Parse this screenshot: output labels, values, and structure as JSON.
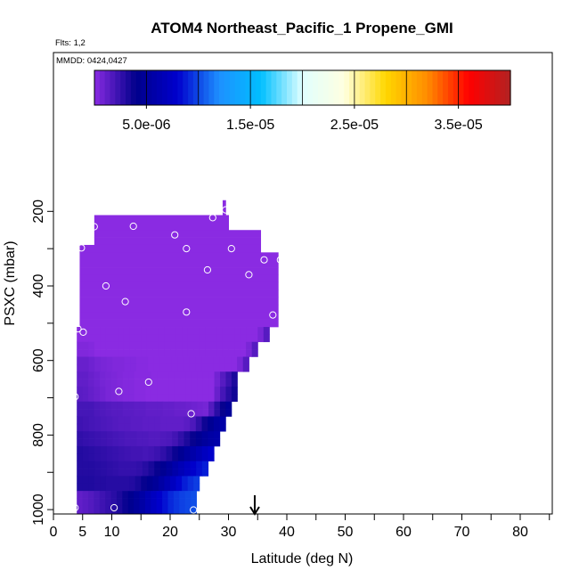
{
  "header": {
    "flights_text": "Flts: 1,2",
    "mmdd_text": "MMDD: 0424,0427"
  },
  "chart_data": {
    "type": "heatmap",
    "title": "ATOM4 Northeast_Pacific_1 Propene_GMI",
    "xlabel": "Latitude (deg N)",
    "ylabel": "PSXC (mbar)",
    "xlim": [
      0,
      85
    ],
    "ylim": [
      1010,
      0
    ],
    "x_ticks": [
      0,
      5,
      10,
      20,
      30,
      40,
      50,
      60,
      70,
      80
    ],
    "y_ticks": [
      200,
      400,
      600,
      800,
      1000
    ],
    "colorbar": {
      "range": [
        0,
        4e-05
      ],
      "tick_values": [
        5e-06,
        1.5e-05,
        2.5e-05,
        3.5e-05
      ],
      "tick_labels": [
        "5.0e-06",
        "1.5e-05",
        "2.5e-05",
        "3.5e-05"
      ],
      "colors": [
        "#8a2be2",
        "#00008b",
        "#0000cd",
        "#1e90ff",
        "#00bfff",
        "#e0ffff",
        "#ffffe0",
        "#ffd700",
        "#ff8c00",
        "#ff0000",
        "#b22222"
      ]
    },
    "arrow_latitude": 34.5,
    "field": [
      {
        "p": 180,
        "lat": [
          29,
          29.5
        ],
        "v": [
          0
        ]
      },
      {
        "p": 200,
        "lat": [
          29,
          29.5
        ],
        "v": [
          0
        ]
      },
      {
        "p": 220,
        "lat": [
          7,
          30
        ],
        "v": [
          0
        ]
      },
      {
        "p": 240,
        "lat": [
          7,
          30
        ],
        "v": [
          0
        ]
      },
      {
        "p": 260,
        "lat": [
          7,
          35.5
        ],
        "v": [
          0
        ]
      },
      {
        "p": 280,
        "lat": [
          7,
          35.5
        ],
        "v": [
          0
        ]
      },
      {
        "p": 300,
        "lat": [
          4.5,
          35.5
        ],
        "v": [
          0
        ]
      },
      {
        "p": 320,
        "lat": [
          4.5,
          38.5
        ],
        "v": [
          0
        ]
      },
      {
        "p": 340,
        "lat": [
          4.5,
          38.5
        ],
        "v": [
          0
        ]
      },
      {
        "p": 360,
        "lat": [
          4.5,
          38.5
        ],
        "v": [
          0
        ]
      },
      {
        "p": 380,
        "lat": [
          4.5,
          38.5
        ],
        "v": [
          0
        ]
      },
      {
        "p": 400,
        "lat": [
          4.5,
          38.5
        ],
        "v": [
          0
        ]
      },
      {
        "p": 420,
        "lat": [
          4.5,
          38.5
        ],
        "v": [
          0
        ]
      },
      {
        "p": 440,
        "lat": [
          4.5,
          38.5
        ],
        "v": [
          0
        ]
      },
      {
        "p": 460,
        "lat": [
          4.5,
          38.5
        ],
        "v": [
          0
        ]
      },
      {
        "p": 480,
        "lat": [
          4.5,
          38.5
        ],
        "v": [
          0
        ]
      },
      {
        "p": 500,
        "lat": [
          4.5,
          38.5
        ],
        "v": [
          0
        ]
      },
      {
        "p": 520,
        "lat": [
          4,
          37
        ],
        "v": [
          0,
          0,
          0,
          0,
          0,
          0,
          0,
          0,
          0,
          0,
          0,
          0,
          0,
          0,
          0,
          0,
          0,
          0,
          0,
          0,
          0,
          0,
          0,
          0,
          0,
          0,
          0,
          0,
          0,
          0,
          0,
          0.5,
          1.5
        ]
      },
      {
        "p": 540,
        "lat": [
          4,
          37
        ],
        "v": [
          0,
          0,
          0,
          0,
          0,
          0,
          0,
          0,
          0,
          0,
          0,
          0,
          0,
          0,
          0,
          0,
          0,
          0,
          0,
          0,
          0,
          0,
          0,
          0,
          0,
          0,
          0,
          0,
          0,
          0,
          0,
          0.5,
          1.5
        ]
      },
      {
        "p": 560,
        "lat": [
          4,
          35
        ],
        "v": [
          0.3,
          0.3,
          0.2,
          0,
          0,
          0,
          0,
          0,
          0,
          0,
          0,
          0,
          0,
          0,
          0,
          0,
          0,
          0,
          0,
          0,
          0,
          0,
          0,
          0,
          0,
          0,
          0,
          0,
          0,
          0.5,
          1.5
        ]
      },
      {
        "p": 580,
        "lat": [
          4,
          35
        ],
        "v": [
          0.3,
          0.3,
          0.2,
          0,
          0,
          0,
          0,
          0,
          0,
          0,
          0,
          0,
          0,
          0,
          0,
          0,
          0,
          0,
          0,
          0,
          0,
          0,
          0,
          0,
          0,
          0,
          0,
          0,
          0,
          0.5,
          1.5
        ]
      },
      {
        "p": 600,
        "lat": [
          4,
          33.5
        ],
        "v": [
          1,
          1,
          0.8,
          0.6,
          0.5,
          0.4,
          0.3,
          0.3,
          0.2,
          0.2,
          0.1,
          0.1,
          0,
          0,
          0,
          0,
          0,
          0,
          0,
          0,
          0,
          0,
          0,
          0,
          0,
          0,
          0,
          0.5,
          1.5
        ]
      },
      {
        "p": 620,
        "lat": [
          4,
          33.5
        ],
        "v": [
          1,
          1,
          0.8,
          0.6,
          0.5,
          0.4,
          0.3,
          0.3,
          0.2,
          0.2,
          0.1,
          0.1,
          0,
          0,
          0,
          0,
          0,
          0,
          0,
          0,
          0,
          0,
          0,
          0,
          0,
          0,
          0,
          0.5,
          1.5
        ]
      },
      {
        "p": 640,
        "lat": [
          4,
          31.5
        ],
        "v": [
          1.2,
          1.2,
          1,
          0.8,
          0.6,
          0.5,
          0.4,
          0.3,
          0.2,
          0.2,
          0.1,
          0.1,
          0.1,
          0,
          0,
          0,
          0,
          0,
          0,
          0,
          0,
          0,
          0,
          0,
          0.7,
          1.5,
          2.3,
          3.2
        ]
      },
      {
        "p": 660,
        "lat": [
          4,
          31.5
        ],
        "v": [
          1.2,
          1.2,
          1,
          0.8,
          0.6,
          0.5,
          0.4,
          0.3,
          0.2,
          0.2,
          0.1,
          0.1,
          0.1,
          0,
          0,
          0,
          0,
          0,
          0,
          0,
          0,
          0,
          0,
          0,
          0.7,
          1.5,
          2.3,
          3.2
        ]
      },
      {
        "p": 680,
        "lat": [
          4,
          31.5
        ],
        "v": [
          1.4,
          1.3,
          1.1,
          0.9,
          0.7,
          0.5,
          0.4,
          0.3,
          0.2,
          0.2,
          0.1,
          0.1,
          0,
          0,
          0,
          0,
          0,
          0,
          0,
          0,
          0,
          0,
          0,
          0,
          1,
          2,
          2.8,
          3.5
        ]
      },
      {
        "p": 700,
        "lat": [
          4,
          31.5
        ],
        "v": [
          1.4,
          1.3,
          1.1,
          0.9,
          0.7,
          0.5,
          0.4,
          0.3,
          0.2,
          0.2,
          0.1,
          0.1,
          0,
          0,
          0,
          0,
          0,
          0,
          0,
          0,
          0,
          0,
          0,
          0,
          1,
          2,
          2.8,
          3.5
        ]
      },
      {
        "p": 720,
        "lat": [
          4,
          30.5
        ],
        "v": [
          2,
          2,
          2,
          1.8,
          1.7,
          1.6,
          1.5,
          1.5,
          1.4,
          1.4,
          1.3,
          1.3,
          1.2,
          1.2,
          1.2,
          1.1,
          1.1,
          1,
          1,
          0.9,
          0.8,
          0.7,
          0.6,
          1.6,
          2.8,
          3.8,
          4.8
        ]
      },
      {
        "p": 740,
        "lat": [
          4,
          30.5
        ],
        "v": [
          2,
          2,
          2,
          1.8,
          1.7,
          1.6,
          1.5,
          1.5,
          1.4,
          1.4,
          1.3,
          1.3,
          1.2,
          1.2,
          1.2,
          1.1,
          1.1,
          1,
          1,
          0.9,
          0.8,
          0.7,
          0.6,
          1.6,
          2.8,
          3.8,
          4.8
        ]
      },
      {
        "p": 760,
        "lat": [
          4,
          29.5
        ],
        "v": [
          2.2,
          2.1,
          2,
          1.9,
          1.8,
          1.7,
          1.6,
          1.5,
          1.5,
          1.4,
          1.4,
          1.3,
          1.3,
          1.3,
          1.2,
          1.2,
          1.2,
          1.2,
          1.4,
          1.8,
          2.6,
          3.6,
          4.5,
          5.2,
          5.7
        ]
      },
      {
        "p": 780,
        "lat": [
          4,
          29.5
        ],
        "v": [
          2.2,
          2.1,
          2,
          1.9,
          1.8,
          1.7,
          1.6,
          1.5,
          1.5,
          1.4,
          1.4,
          1.3,
          1.3,
          1.3,
          1.2,
          1.2,
          1.2,
          1.2,
          1.4,
          1.8,
          2.6,
          3.6,
          4.5,
          5.2,
          5.7
        ]
      },
      {
        "p": 800,
        "lat": [
          4,
          28.5
        ],
        "v": [
          2.6,
          2.5,
          2.4,
          2.3,
          2.2,
          2.1,
          2,
          1.9,
          1.8,
          1.8,
          1.7,
          1.7,
          1.6,
          1.6,
          1.7,
          1.8,
          2.1,
          2.6,
          3.2,
          3.8,
          4.4,
          5,
          5.5,
          5.8
        ]
      },
      {
        "p": 820,
        "lat": [
          4,
          28.5
        ],
        "v": [
          2.6,
          2.5,
          2.4,
          2.3,
          2.2,
          2.1,
          2,
          1.9,
          1.8,
          1.8,
          1.7,
          1.7,
          1.6,
          1.6,
          1.7,
          1.8,
          2.1,
          2.6,
          3.2,
          3.8,
          4.4,
          5,
          5.5,
          5.8
        ]
      },
      {
        "p": 840,
        "lat": [
          4,
          27.5
        ],
        "v": [
          3,
          2.9,
          2.8,
          2.7,
          2.6,
          2.5,
          2.4,
          2.3,
          2.2,
          2.1,
          2.1,
          2,
          2.1,
          2.3,
          2.6,
          3.1,
          3.7,
          4.5,
          5.2,
          5.8,
          6.5,
          7.2,
          7.8
        ]
      },
      {
        "p": 860,
        "lat": [
          4,
          27.5
        ],
        "v": [
          3,
          2.9,
          2.8,
          2.7,
          2.6,
          2.5,
          2.4,
          2.3,
          2.2,
          2.1,
          2.1,
          2,
          2.1,
          2.3,
          2.6,
          3.1,
          3.7,
          4.5,
          5.2,
          5.8,
          6.5,
          7.2,
          7.8
        ]
      },
      {
        "p": 880,
        "lat": [
          4,
          26.5
        ],
        "v": [
          3,
          3,
          3,
          2.9,
          2.8,
          2.7,
          2.6,
          2.5,
          2.5,
          2.5,
          2.6,
          2.9,
          3.3,
          3.8,
          4.4,
          5.1,
          5.9,
          6.6,
          7.3,
          7.9,
          8.4,
          8.8
        ]
      },
      {
        "p": 900,
        "lat": [
          4,
          26.5
        ],
        "v": [
          3,
          3,
          3,
          2.9,
          2.8,
          2.7,
          2.6,
          2.5,
          2.5,
          2.5,
          2.6,
          2.9,
          3.3,
          3.8,
          4.4,
          5.1,
          5.9,
          6.6,
          7.3,
          7.9,
          8.4,
          8.8
        ]
      },
      {
        "p": 920,
        "lat": [
          4,
          25
        ],
        "v": [
          3.1,
          3.1,
          3.1,
          3,
          3,
          2.9,
          2.9,
          2.9,
          2.9,
          3,
          3.3,
          3.8,
          4.3,
          4.8,
          5.5,
          6.3,
          7.2,
          8.1,
          8.8,
          9.3,
          9.7
        ]
      },
      {
        "p": 940,
        "lat": [
          4,
          25
        ],
        "v": [
          3.1,
          3.1,
          3.1,
          3,
          3,
          2.9,
          2.9,
          2.9,
          2.9,
          3,
          3.3,
          3.8,
          4.3,
          4.8,
          5.5,
          6.3,
          7.2,
          8.1,
          8.8,
          9.3,
          9.7
        ]
      },
      {
        "p": 960,
        "lat": [
          4,
          24.5
        ],
        "v": [
          1.2,
          1.4,
          1.6,
          1.9,
          2.2,
          2.5,
          2.8,
          3.2,
          3.7,
          4.3,
          4.9,
          5.6,
          6.4,
          7.2,
          7.9,
          8.5,
          9.1,
          9.5,
          9.8,
          10,
          10.2
        ]
      },
      {
        "p": 980,
        "lat": [
          4,
          24.5
        ],
        "v": [
          1.2,
          1.4,
          1.6,
          1.9,
          2.2,
          2.5,
          2.8,
          3.2,
          3.7,
          4.3,
          4.9,
          5.6,
          6.4,
          7.2,
          7.9,
          8.5,
          9.1,
          9.5,
          9.8,
          10,
          10.2
        ]
      },
      {
        "p": 1000,
        "lat": [
          4,
          24.5
        ],
        "v": [
          1.2,
          1.4,
          1.6,
          1.9,
          2.2,
          2.5,
          2.8,
          3.2,
          3.7,
          4.3,
          4.9,
          5.6,
          6.4,
          7.2,
          7.9,
          8.5,
          9.1,
          9.5,
          9.8,
          10,
          10.2
        ]
      }
    ],
    "observations": [
      {
        "lat": 29.5,
        "p": 196
      },
      {
        "lat": 27.3,
        "p": 217
      },
      {
        "lat": 7,
        "p": 241
      },
      {
        "lat": 13.7,
        "p": 240
      },
      {
        "lat": 20.8,
        "p": 263
      },
      {
        "lat": 4.8,
        "p": 298
      },
      {
        "lat": 22.8,
        "p": 300
      },
      {
        "lat": 30.5,
        "p": 300
      },
      {
        "lat": 36.1,
        "p": 330
      },
      {
        "lat": 38.9,
        "p": 330
      },
      {
        "lat": 26.4,
        "p": 357
      },
      {
        "lat": 33.5,
        "p": 370
      },
      {
        "lat": 9,
        "p": 400
      },
      {
        "lat": 12.3,
        "p": 442
      },
      {
        "lat": 37.6,
        "p": 478
      },
      {
        "lat": 22.8,
        "p": 470
      },
      {
        "lat": 4.2,
        "p": 515
      },
      {
        "lat": 5.1,
        "p": 524
      },
      {
        "lat": 16.3,
        "p": 658
      },
      {
        "lat": 11.2,
        "p": 683
      },
      {
        "lat": 3.7,
        "p": 697
      },
      {
        "lat": 23.6,
        "p": 743
      },
      {
        "lat": 3.7,
        "p": 995
      },
      {
        "lat": 10.4,
        "p": 995
      },
      {
        "lat": 24,
        "p": 1001
      }
    ]
  }
}
